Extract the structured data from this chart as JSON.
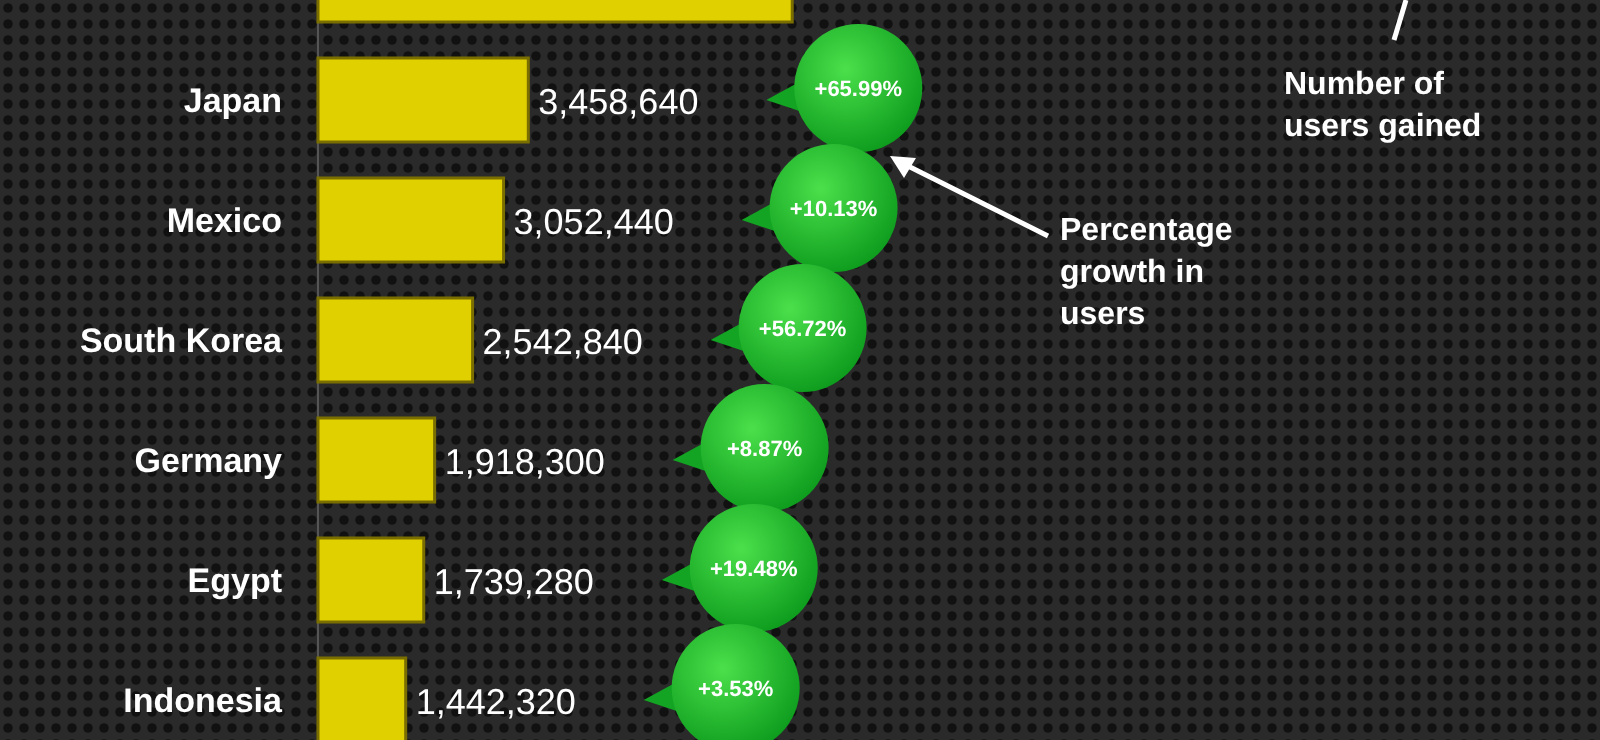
{
  "chart_data": {
    "type": "bar",
    "orientation": "horizontal",
    "categories": [
      null,
      "Japan",
      "Mexico",
      "South Korea",
      "Germany",
      "Egypt",
      "Indonesia"
    ],
    "values": [
      7800000,
      3458640,
      3052440,
      2542840,
      1918300,
      1739280,
      1442320
    ],
    "value_labels": [
      null,
      "3,458,640",
      "3,052,440",
      "2,542,840",
      "1,918,300",
      "1,739,280",
      "1,442,320"
    ],
    "color": "#e0d000",
    "annotations": [
      "Percentage growth in users",
      "Number of users gained",
      "+65.99%",
      "+10.13%",
      "+56.72%",
      "+8.87%",
      "+19.48%",
      "+3.53%"
    ]
  }
}
